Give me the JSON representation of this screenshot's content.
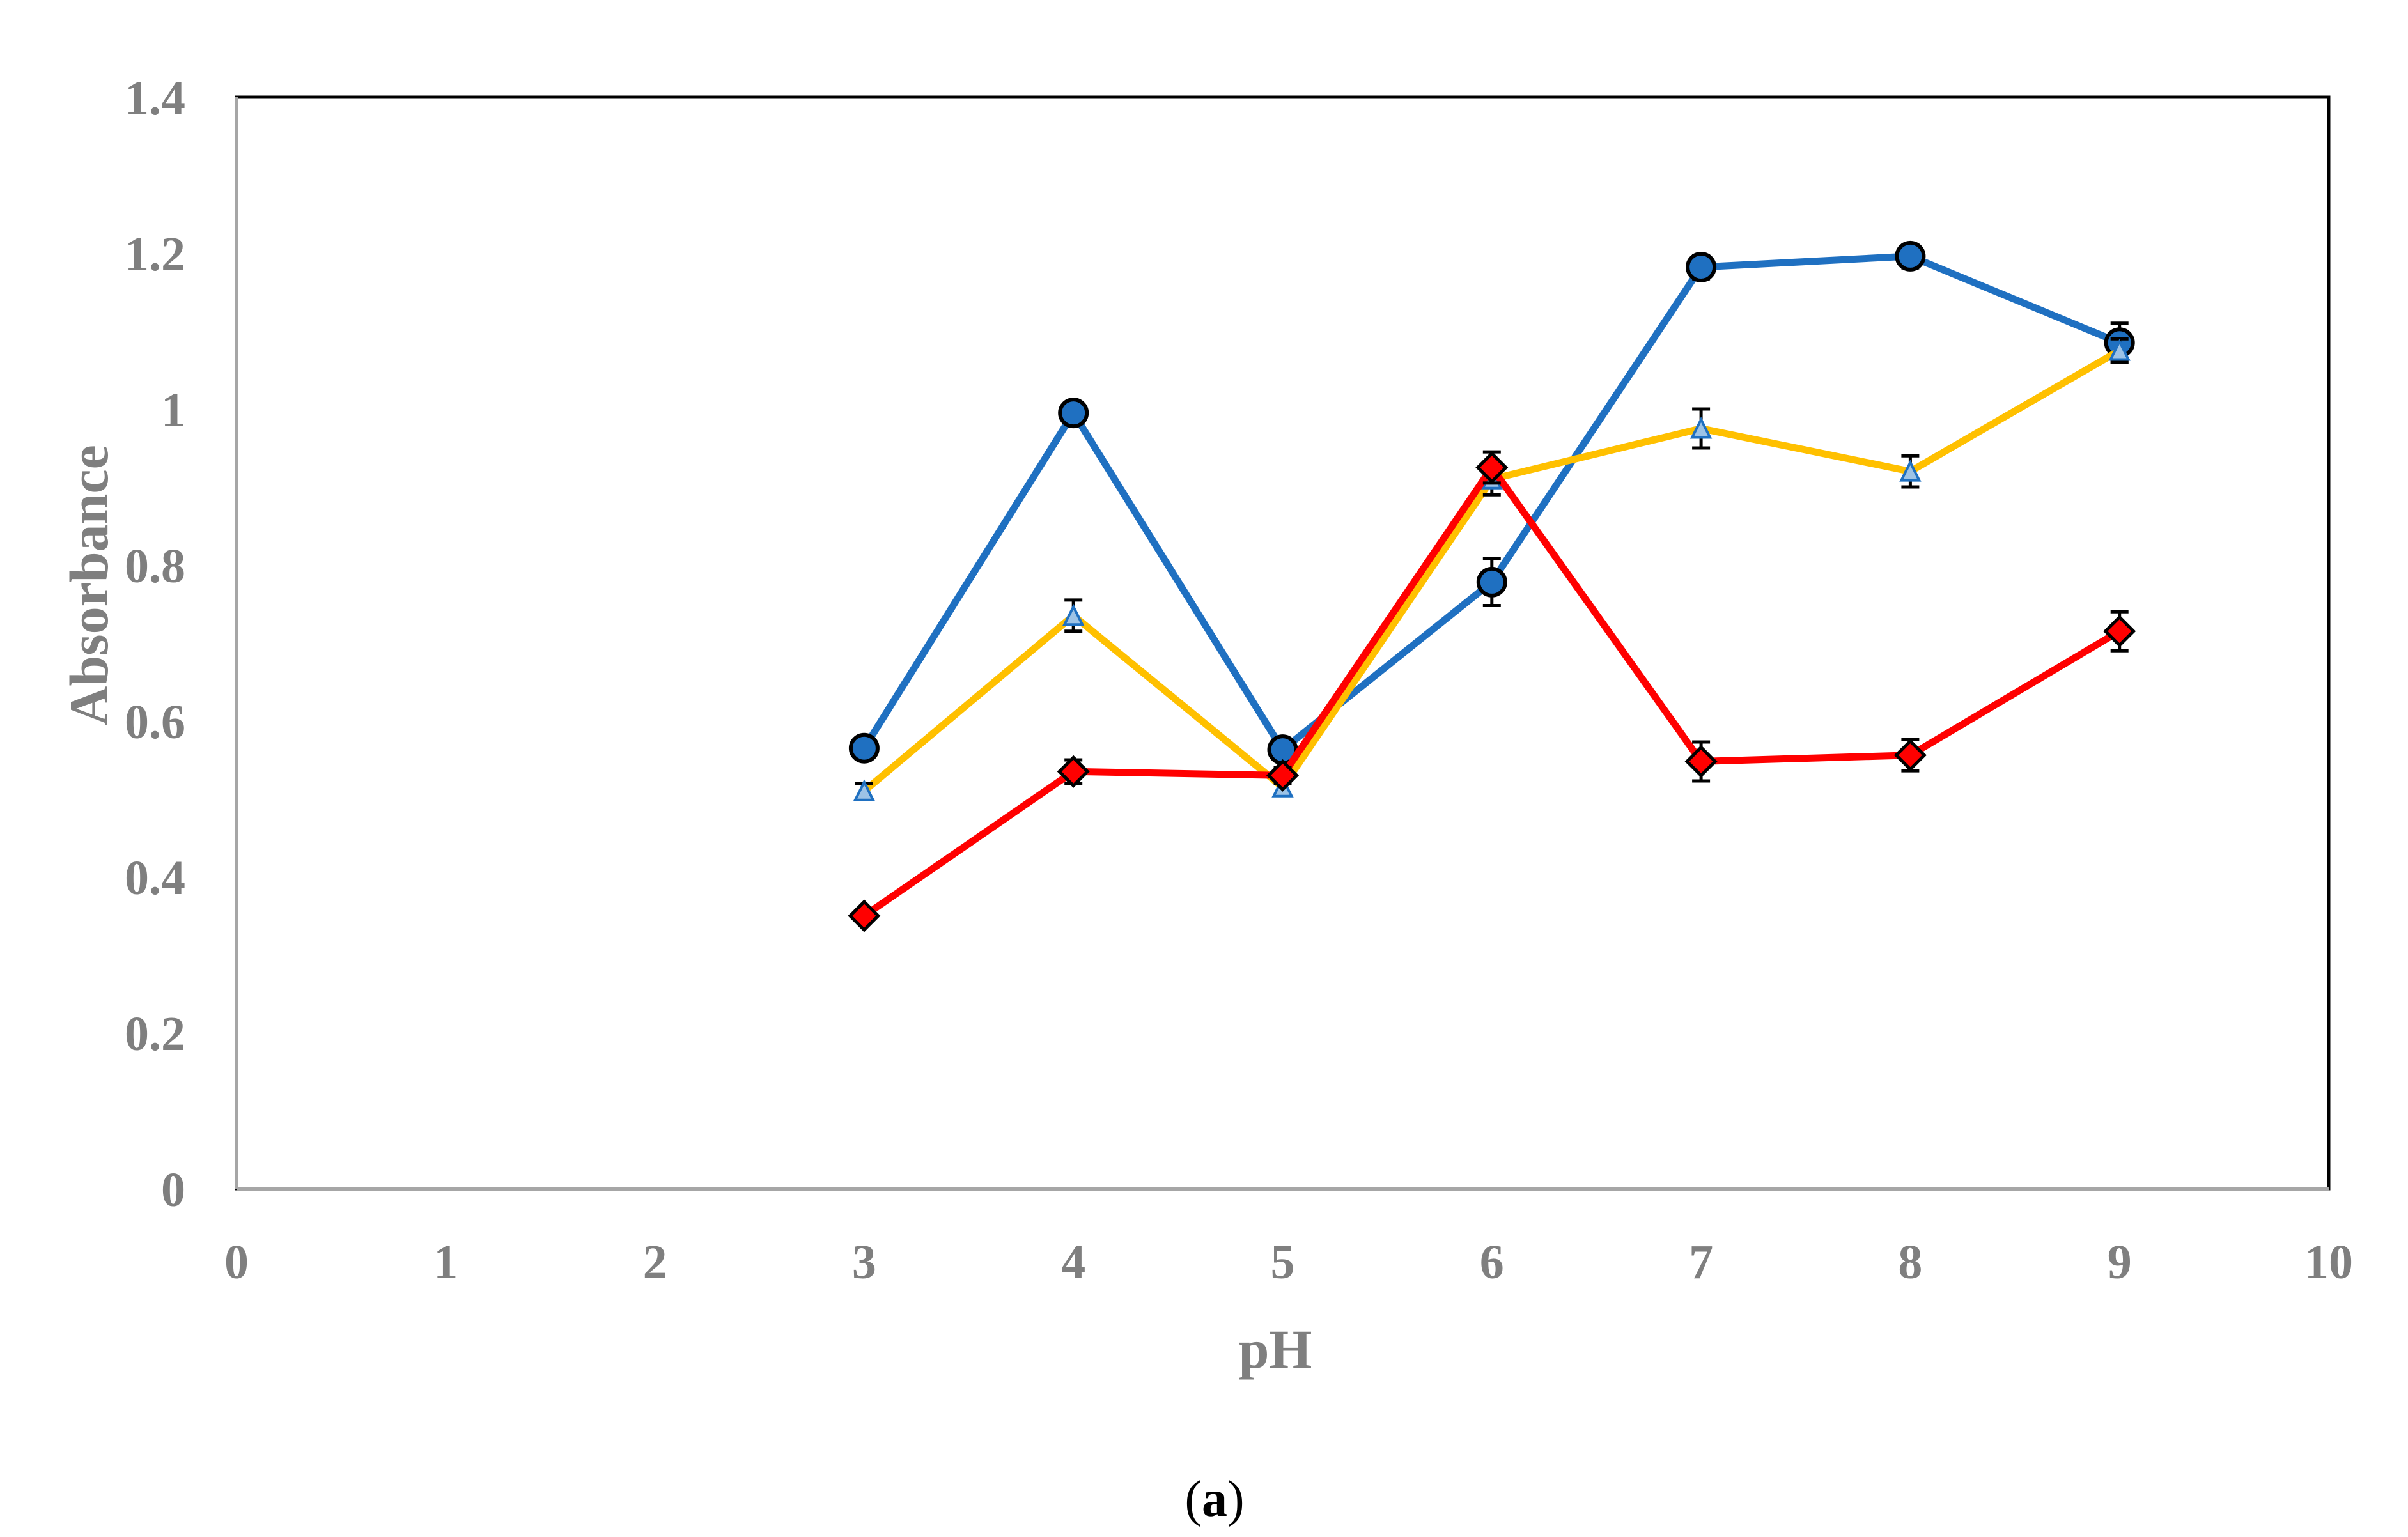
{
  "chart_data": {
    "type": "line",
    "title": "",
    "xlabel": "pH",
    "ylabel": "Absorbance",
    "xlim": [
      0,
      10
    ],
    "ylim": [
      0,
      1.4
    ],
    "x_ticks": [
      "0",
      "1",
      "2",
      "3",
      "4",
      "5",
      "6",
      "7",
      "8",
      "9",
      "10"
    ],
    "y_ticks": [
      "0",
      "0.2",
      "0.4",
      "0.6",
      "0.8",
      "1",
      "1.2",
      "1.4"
    ],
    "grid": false,
    "legend": "none",
    "series": [
      {
        "color": "#1f70c1",
        "marker": "circle",
        "x": [
          3,
          4,
          5,
          6,
          7,
          8,
          9
        ],
        "y": [
          0.565,
          0.995,
          0.563,
          0.778,
          1.182,
          1.196,
          1.085
        ],
        "error": [
          0.005,
          0.005,
          0.01,
          0.03,
          0.015,
          0.015,
          0.025
        ]
      },
      {
        "color": "#ffc000",
        "marker": "triangle",
        "x": [
          3,
          4,
          5,
          6,
          7,
          8,
          9
        ],
        "y": [
          0.51,
          0.735,
          0.515,
          0.91,
          0.975,
          0.92,
          1.075
        ],
        "error": [
          0.01,
          0.02,
          0.01,
          0.02,
          0.025,
          0.02,
          0.015
        ]
      },
      {
        "color": "#ff0000",
        "marker": "diamond",
        "x": [
          3,
          4,
          5,
          6,
          7,
          8,
          9
        ],
        "y": [
          0.35,
          0.535,
          0.53,
          0.925,
          0.548,
          0.556,
          0.715
        ],
        "error": [
          0.005,
          0.015,
          0.01,
          0.02,
          0.025,
          0.02,
          0.025
        ]
      }
    ]
  },
  "caption": {
    "open": "(",
    "letter": "a",
    "close": ")"
  }
}
